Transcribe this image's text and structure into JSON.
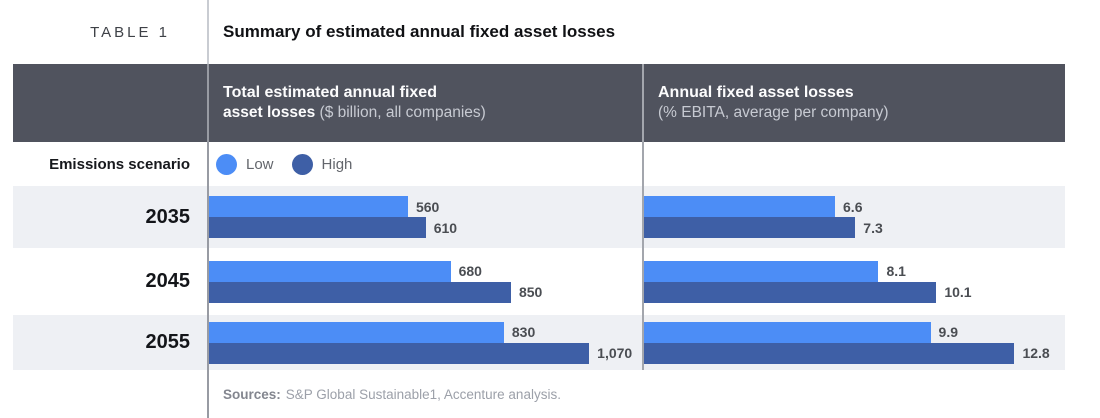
{
  "title_row": {
    "table_label": "TABLE 1",
    "title": "Summary of estimated annual fixed asset losses"
  },
  "column_headers": {
    "left": {
      "line1": "Total estimated annual fixed",
      "line2_bold": "asset losses",
      "line2_normal": "($ billion, all companies)"
    },
    "right": {
      "line1": "Annual fixed asset losses",
      "line2_bold": "",
      "line2_normal": "(% EBITA, average per company)"
    }
  },
  "legend": {
    "row_label": "Emissions scenario",
    "items": [
      {
        "label": "Low",
        "color": "#4c8df6"
      },
      {
        "label": "High",
        "color": "#3e5fa6"
      }
    ]
  },
  "chart_data": {
    "type": "bar",
    "orientation": "horizontal",
    "title": "Summary of estimated annual fixed asset losses",
    "categories": [
      "2035",
      "2045",
      "2055"
    ],
    "legend_entries": [
      "Low",
      "High"
    ],
    "legend_position": "top-left",
    "grid": false,
    "charts": [
      {
        "name": "Total estimated annual fixed asset losses ($ billion, all companies)",
        "unit": "$ billion",
        "xlim": [
          0,
          1070
        ],
        "series": [
          {
            "name": "Low",
            "color": "#4c8df6",
            "values": [
              560,
              680,
              830
            ],
            "labels": [
              "560",
              "680",
              "830"
            ]
          },
          {
            "name": "High",
            "color": "#3e5fa6",
            "values": [
              610,
              850,
              1070
            ],
            "labels": [
              "610",
              "850",
              "1,070"
            ]
          }
        ]
      },
      {
        "name": "Annual fixed asset losses (% EBITA, average per company)",
        "unit": "% EBITA",
        "xlim": [
          0,
          12.8
        ],
        "series": [
          {
            "name": "Low",
            "color": "#4c8df6",
            "values": [
              6.6,
              8.1,
              9.9
            ],
            "labels": [
              "6.6",
              "8.1",
              "9.9"
            ]
          },
          {
            "name": "High",
            "color": "#3e5fa6",
            "values": [
              7.3,
              10.1,
              12.8
            ],
            "labels": [
              "7.3",
              "10.1",
              "12.8"
            ]
          }
        ]
      }
    ]
  },
  "footer": {
    "label": "Sources:",
    "text": "S&P Global Sustainable1, Accenture analysis."
  },
  "colors": {
    "header_band": "#50535e",
    "row_alt": "#eef0f4",
    "low_bar": "#4c8df6",
    "high_bar": "#3e5fa6",
    "divider": "#989ba3",
    "value_label": "#4a4d52"
  }
}
